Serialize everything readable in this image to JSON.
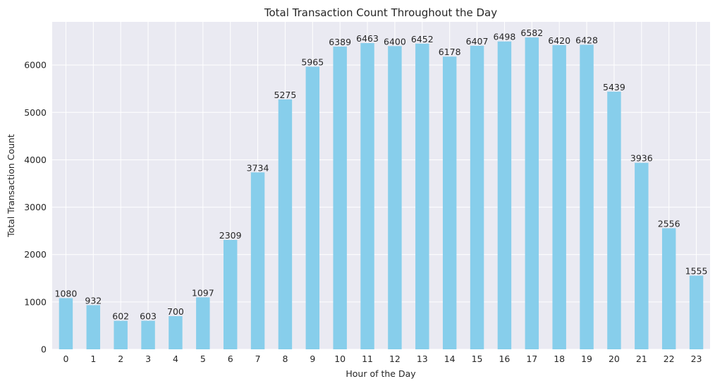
{
  "chart_data": {
    "type": "bar",
    "title": "Total Transaction Count Throughout the Day",
    "xlabel": "Hour of the Day",
    "ylabel": "Total Transaction Count",
    "categories": [
      "0",
      "1",
      "2",
      "3",
      "4",
      "5",
      "6",
      "7",
      "8",
      "9",
      "10",
      "11",
      "12",
      "13",
      "14",
      "15",
      "16",
      "17",
      "18",
      "19",
      "20",
      "21",
      "22",
      "23"
    ],
    "values": [
      1080,
      932,
      602,
      603,
      700,
      1097,
      2309,
      3734,
      5275,
      5965,
      6389,
      6463,
      6400,
      6452,
      6178,
      6407,
      6498,
      6582,
      6420,
      6428,
      5439,
      3936,
      2556,
      1555
    ],
    "ylim": [
      0,
      6911
    ],
    "yticks": [
      0,
      1000,
      2000,
      3000,
      4000,
      5000,
      6000
    ],
    "grid": true,
    "legend": "none",
    "colors": {
      "bar": "#87CEEB",
      "plot_background": "#EAEAF2",
      "grid": "#FFFFFF"
    }
  }
}
